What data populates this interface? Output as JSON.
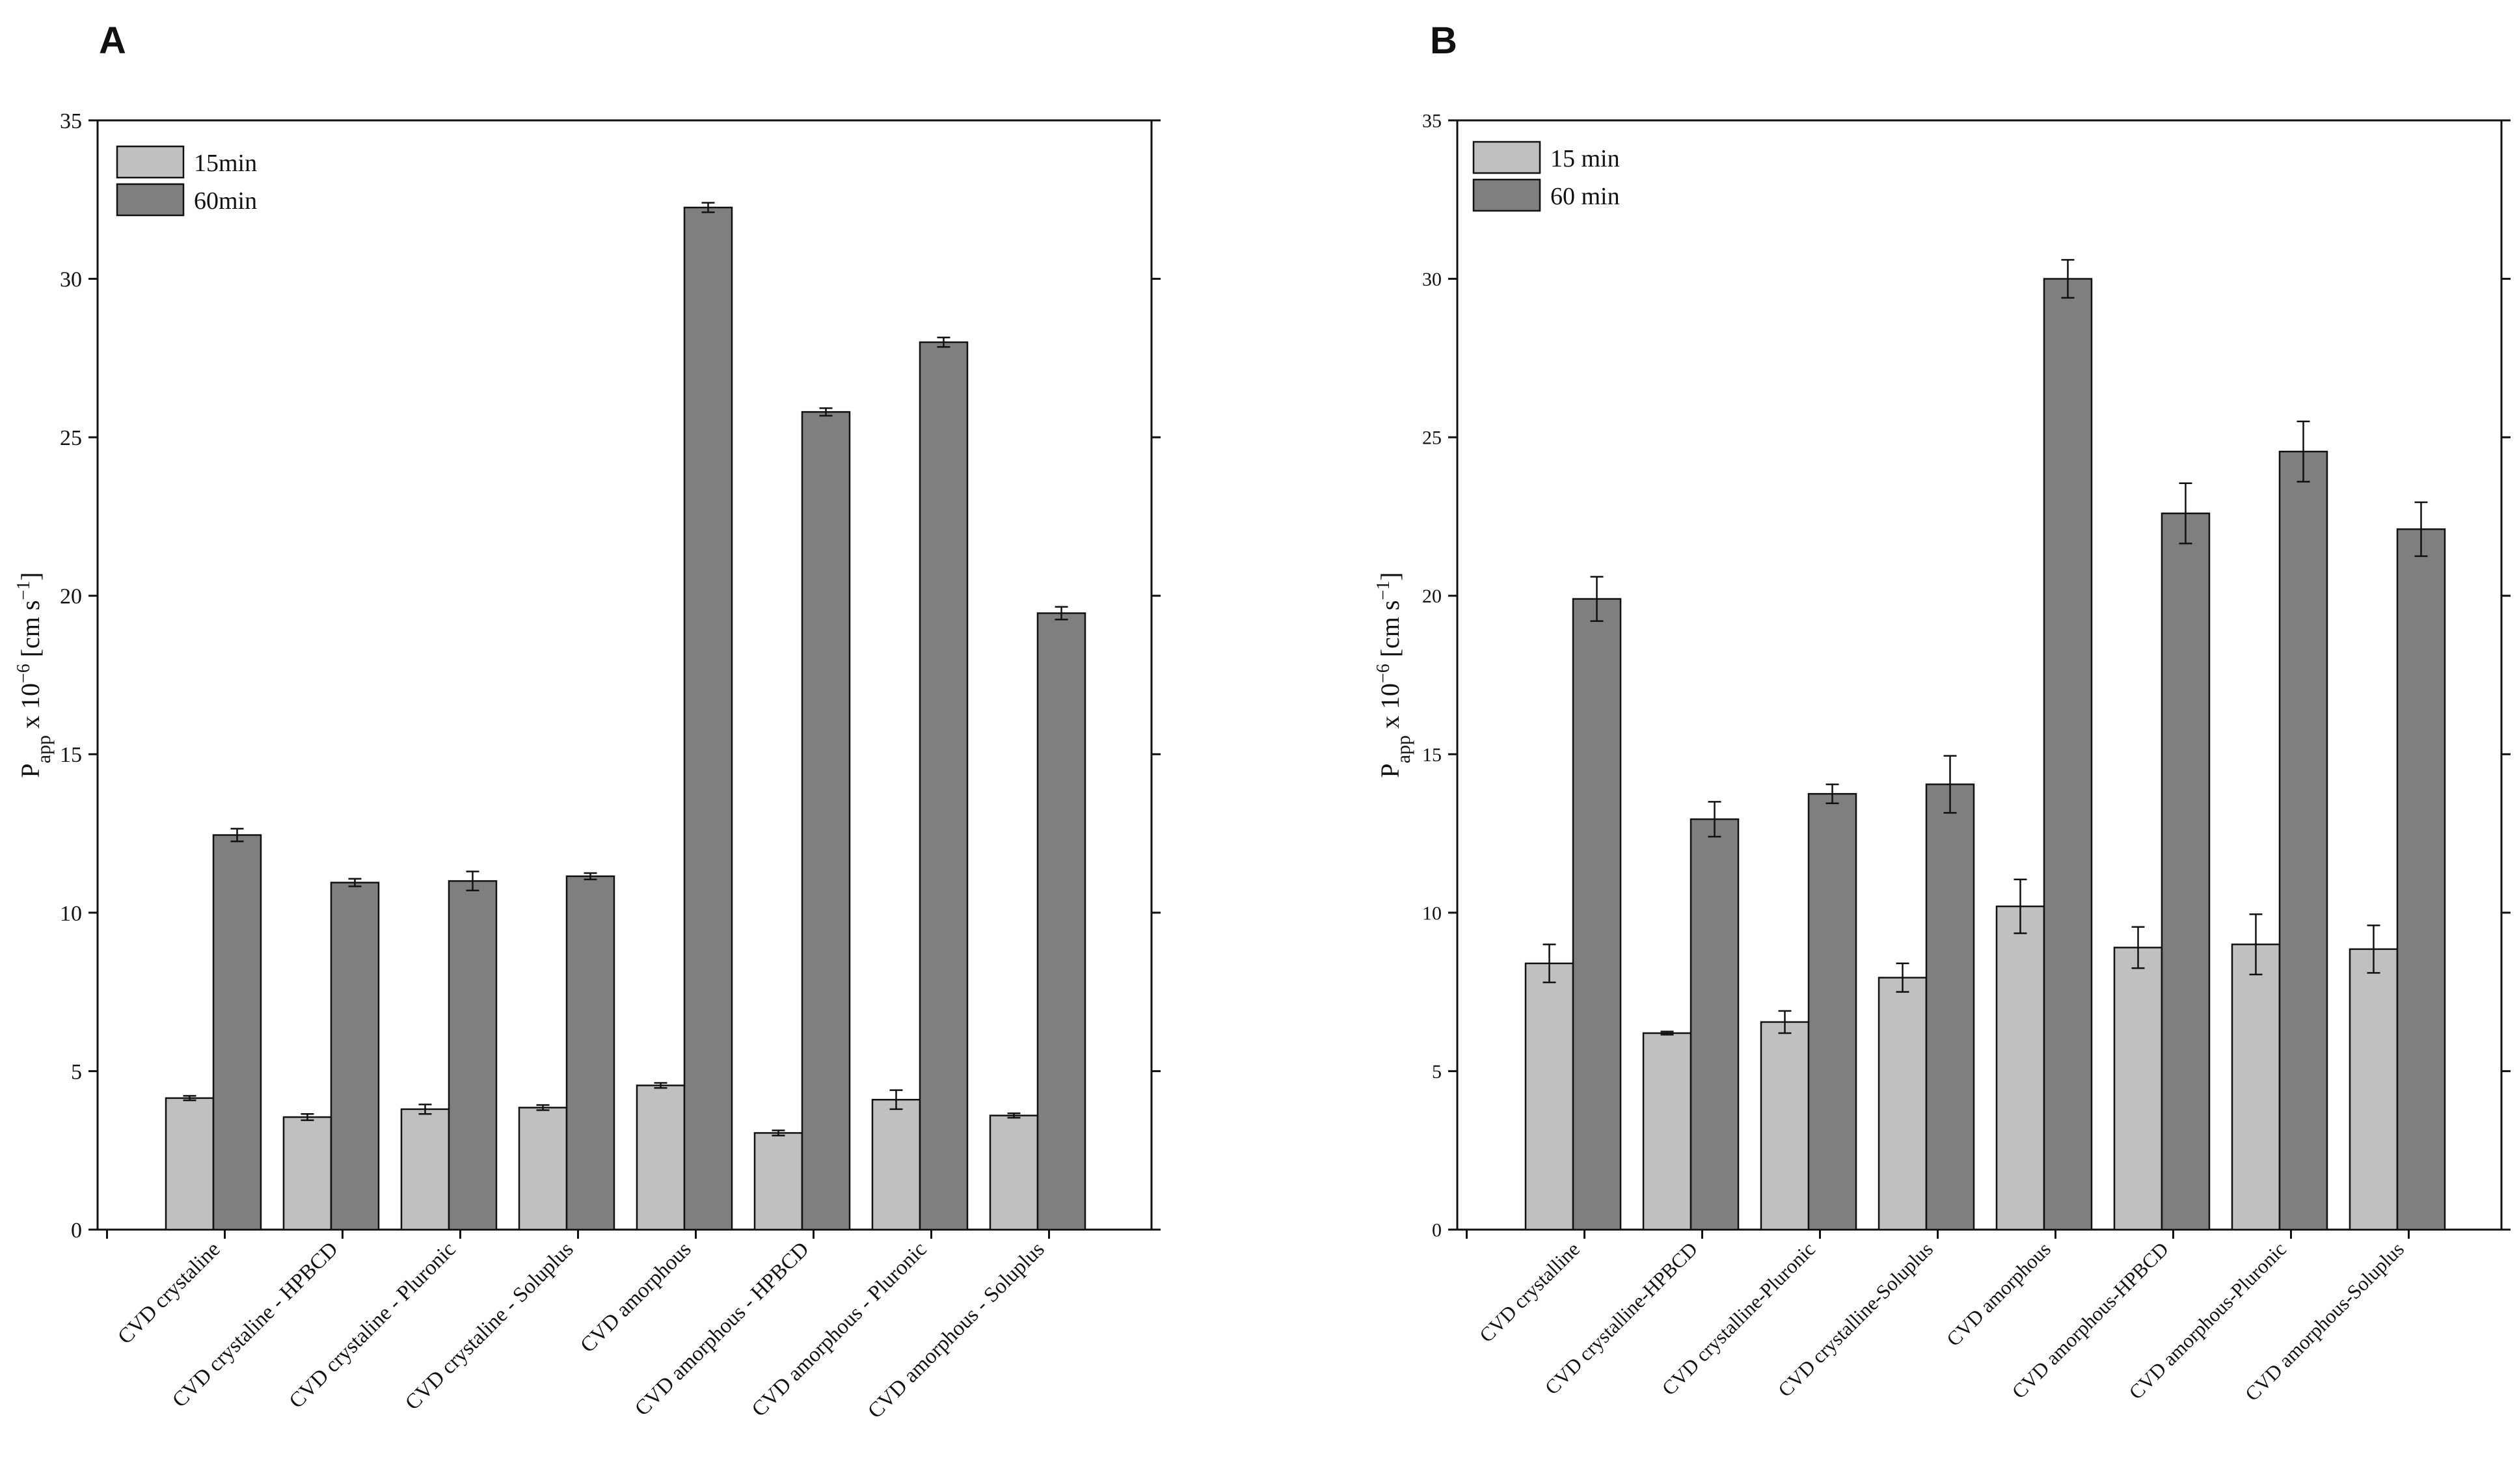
{
  "colors": {
    "bar_15": "#c0c0c0",
    "bar_60": "#7f7f7f",
    "outline": "#111111",
    "background": "#ffffff"
  },
  "chart_data": [
    {
      "panel": "A",
      "type": "bar",
      "ylabel": {
        "main": "P",
        "sub": "app",
        "mid": " x 10",
        "sup": "−6",
        "unit_start": " [cm s",
        "unit_sup": "−1",
        "unit_end": "]"
      },
      "xlabel": "",
      "ylim": [
        0,
        35
      ],
      "yticks": [
        0,
        5,
        10,
        15,
        20,
        25,
        30,
        35
      ],
      "categories": [
        "CVD crystaline",
        "CVD crystaline - HPBCD",
        "CVD crystaline - Pluronic",
        "CVD crystaline - Soluplus",
        "CVD amorphous",
        "CVD amorphous - HPBCD",
        "CVD amorphous - Pluronic",
        "CVD amorphous - Soluplus"
      ],
      "legend_position": "top-left",
      "series": [
        {
          "name": "15min",
          "color_key": "bar_15",
          "values": [
            4.15,
            3.55,
            3.8,
            3.85,
            4.55,
            3.05,
            4.1,
            3.6
          ],
          "errors": [
            0.07,
            0.1,
            0.15,
            0.08,
            0.08,
            0.08,
            0.3,
            0.07
          ]
        },
        {
          "name": "60min",
          "color_key": "bar_60",
          "values": [
            12.45,
            10.95,
            11.0,
            11.15,
            32.25,
            25.8,
            28.0,
            19.45
          ],
          "errors": [
            0.2,
            0.12,
            0.3,
            0.1,
            0.15,
            0.12,
            0.15,
            0.2
          ]
        }
      ]
    },
    {
      "panel": "B",
      "type": "bar",
      "ylabel": {
        "main": "P",
        "sub": "app",
        "mid": " x 10",
        "sup": "−6",
        "unit_start": " [cm s",
        "unit_sup": "−1",
        "unit_end": "]"
      },
      "xlabel": "",
      "ylim": [
        0,
        35
      ],
      "yticks": [
        0,
        5,
        10,
        15,
        20,
        25,
        30,
        35
      ],
      "categories": [
        "CVD crystalline",
        "CVD crystalline-HPBCD",
        "CVD crystalline-Pluronic",
        "CVD crystalline-Soluplus",
        "CVD amorphous",
        "CVD amorphous-HPBCD",
        "CVD amorphous-Pluronic",
        "CVD amorphous-Soluplus"
      ],
      "legend_position": "top-left",
      "series": [
        {
          "name": "15 min",
          "color_key": "bar_15",
          "values": [
            8.4,
            6.2,
            6.55,
            7.95,
            10.2,
            8.9,
            9.0,
            8.85
          ],
          "errors": [
            0.6,
            0.05,
            0.35,
            0.45,
            0.85,
            0.65,
            0.95,
            0.75
          ]
        },
        {
          "name": "60 min",
          "color_key": "bar_60",
          "values": [
            19.9,
            12.95,
            13.75,
            14.05,
            30.0,
            22.6,
            24.55,
            22.1
          ],
          "errors": [
            0.7,
            0.55,
            0.3,
            0.9,
            0.6,
            0.95,
            0.95,
            0.85
          ]
        }
      ]
    }
  ]
}
